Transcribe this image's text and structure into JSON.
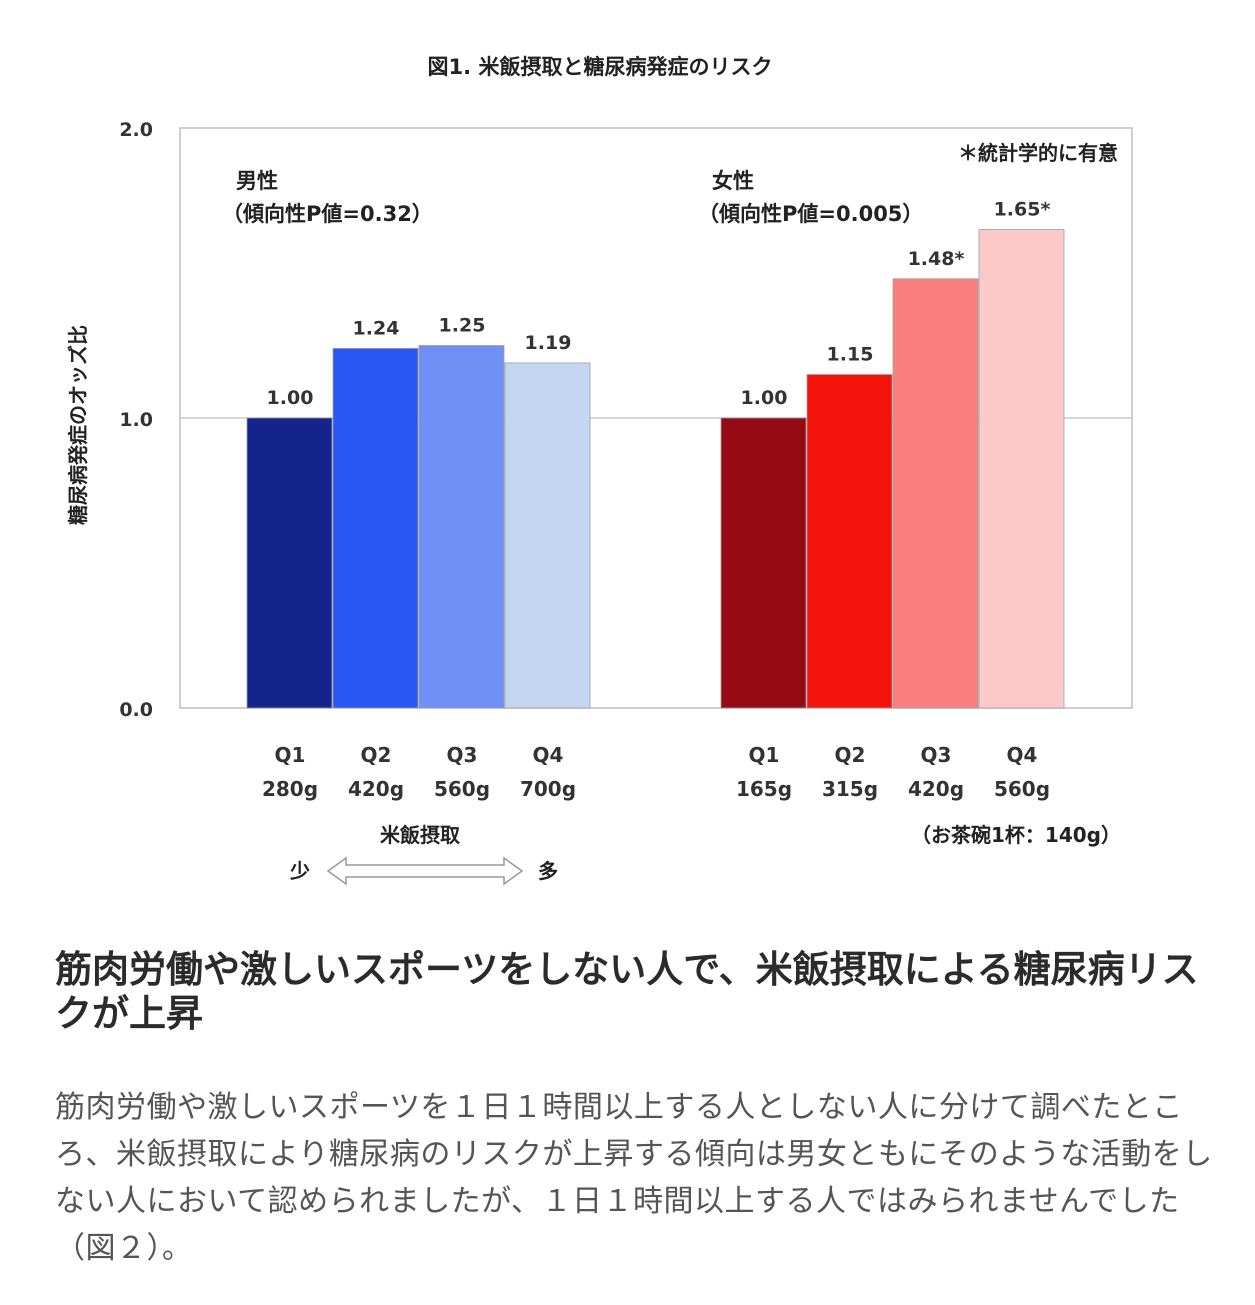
{
  "chart_data": {
    "type": "bar",
    "title": "図1. 米飯摂取と糖尿病発症のリスク",
    "ylabel": "糖尿病発症のオッズ比",
    "xlabel": "米飯摂取",
    "ylim": [
      0,
      2
    ],
    "yticks": [
      "0.0",
      "1.0",
      "2.0"
    ],
    "reference_line": 1.0,
    "note": "＊統計学的に有意",
    "footnote": "（お茶碗1杯：140g）",
    "arrow_left": "少",
    "arrow_right": "多",
    "groups": [
      {
        "name": "男性",
        "trend": "（傾向性P値=0.32）",
        "categories": [
          "Q1",
          "Q2",
          "Q3",
          "Q4"
        ],
        "amounts": [
          "280g",
          "420g",
          "560g",
          "700g"
        ],
        "values": [
          1.0,
          1.24,
          1.25,
          1.19
        ],
        "labels": [
          "1.00",
          "1.24",
          "1.25",
          "1.19"
        ],
        "colors": [
          "#14248c",
          "#2a56f5",
          "#6f90f7",
          "#c4d6f2"
        ]
      },
      {
        "name": "女性",
        "trend": "（傾向性P値=0.005）",
        "categories": [
          "Q1",
          "Q2",
          "Q3",
          "Q4"
        ],
        "amounts": [
          "165g",
          "315g",
          "420g",
          "560g"
        ],
        "values": [
          1.0,
          1.15,
          1.48,
          1.65
        ],
        "labels": [
          "1.00",
          "1.15",
          "1.48*",
          "1.65*"
        ],
        "colors": [
          "#960a16",
          "#f5140c",
          "#fa7e7e",
          "#fcc8c8"
        ]
      }
    ]
  },
  "article": {
    "heading": "筋肉労働や激しいスポーツをしない人で、米飯摂取による糖尿病リスクが上昇",
    "body": "筋肉労働や激しいスポーツを１日１時間以上する人としない人に分けて調べたところ、米飯摂取により糖尿病のリスクが上昇する傾向は男女ともにそのような活動をしない人において認められましたが、１日１時間以上する人ではみられませんでした（図２）。"
  }
}
